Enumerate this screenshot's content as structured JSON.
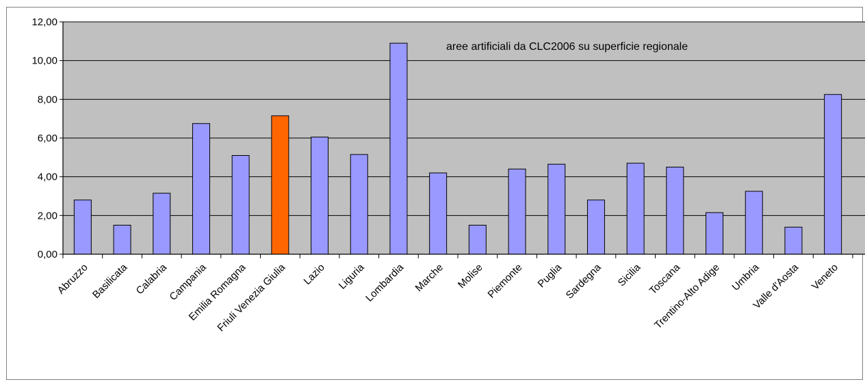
{
  "chart_data": {
    "type": "bar",
    "title": "aree artificiali da CLC2006 su superficie regionale",
    "xlabel": "",
    "ylabel": "",
    "ylim": [
      0,
      12
    ],
    "ytick_values": [
      0,
      2,
      4,
      6,
      8,
      10,
      12
    ],
    "ytick_labels": [
      "0,00",
      "2,00",
      "4,00",
      "6,00",
      "8,00",
      "10,00",
      "12,00"
    ],
    "grid": true,
    "legend": "none",
    "categories": [
      "Abruzzo",
      "Basilicata",
      "Calabria",
      "Campania",
      "Emilia Romagna",
      "Friuli Venezia Giulia",
      "Lazio",
      "Liguria",
      "Lombardia",
      "Marche",
      "Molise",
      "Piemonte",
      "Puglia",
      "Sardegna",
      "Sicilia",
      "Toscana",
      "Trentino-Alto Adige",
      "Umbria",
      "Valle d'Aosta",
      "Veneto"
    ],
    "values": [
      2.8,
      1.5,
      3.15,
      6.75,
      5.1,
      7.15,
      6.05,
      5.15,
      10.9,
      4.2,
      1.5,
      4.4,
      4.65,
      2.8,
      4.7,
      4.5,
      2.15,
      3.25,
      1.4,
      8.25
    ],
    "highlight_index": 5,
    "colors": {
      "bar": "#9999ff",
      "highlight": "#ff6600",
      "bar_stroke": "#000000",
      "plot_background": "#c0c0c0",
      "grid": "#000000"
    }
  }
}
